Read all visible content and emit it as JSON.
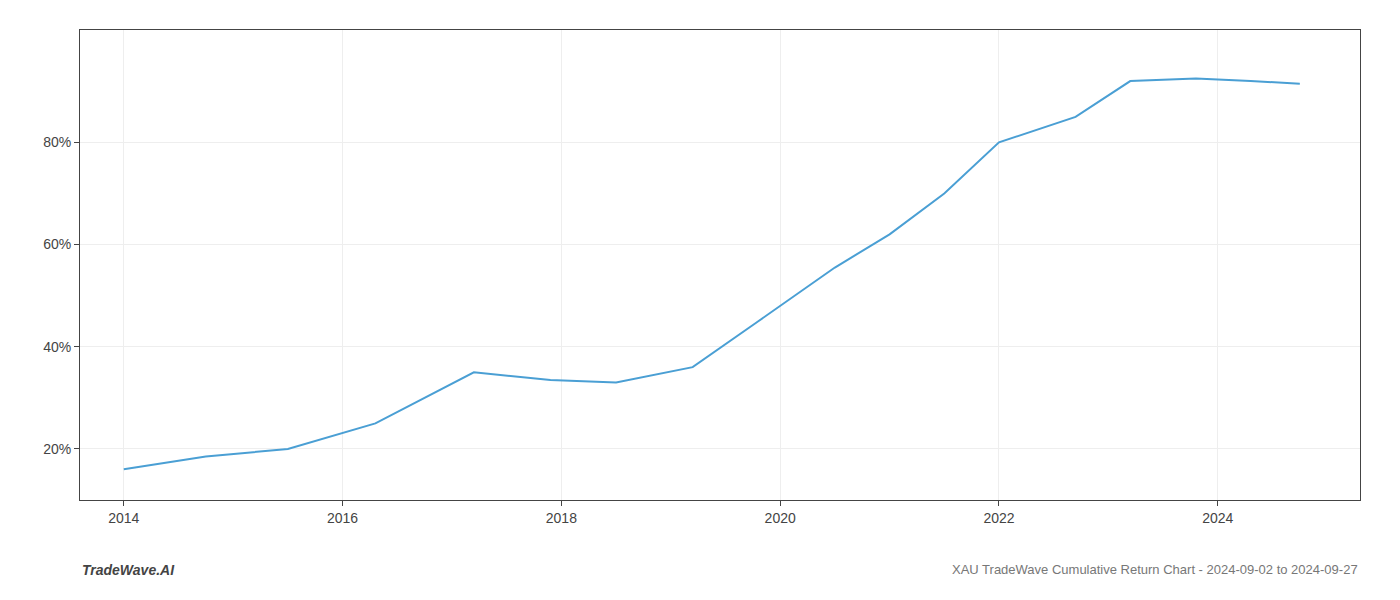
{
  "chart_data": {
    "type": "line",
    "title": "XAU TradeWave Cumulative Return Chart - 2024-09-02 to 2024-09-27",
    "annotations": [
      "TradeWave.AI"
    ],
    "x": [
      2014.0,
      2014.75,
      2015.5,
      2016.3,
      2017.2,
      2017.9,
      2018.5,
      2019.2,
      2019.8,
      2020.5,
      2021.0,
      2021.5,
      2022.0,
      2022.7,
      2023.2,
      2023.8,
      2024.3,
      2024.75
    ],
    "values": [
      16.0,
      18.5,
      20.0,
      25.0,
      35.0,
      33.5,
      33.0,
      36.0,
      45.0,
      55.5,
      62.0,
      70.0,
      80.0,
      85.0,
      92.0,
      92.5,
      92.0,
      91.5
    ],
    "color": "#4a9fd4",
    "xlim": [
      2013.6,
      2025.3
    ],
    "ylim": [
      10,
      102
    ],
    "xticks": [
      2014,
      2016,
      2018,
      2020,
      2022,
      2024
    ],
    "yticks": [
      {
        "value": 20,
        "label": "20%"
      },
      {
        "value": 40,
        "label": "40%"
      },
      {
        "value": 60,
        "label": "60%"
      },
      {
        "value": 80,
        "label": "80%"
      }
    ],
    "grid": true
  }
}
